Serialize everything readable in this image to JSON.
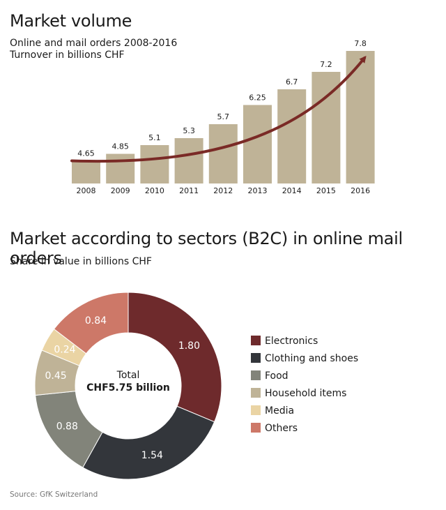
{
  "bar_section": {
    "title": "Market volume",
    "subtitle_line1": "Online and mail orders 2008-2016",
    "subtitle_line2": "Turnover in billions CHF"
  },
  "donut_section": {
    "title": "Market according to sectors (B2C) in online mail orders",
    "subtitle": "Share in value in billions CHF",
    "total_label": "Total",
    "total_value": "CHF5.75 billion"
  },
  "source": "Source: GfK Switzerland",
  "colors": {
    "bar": "#bfb397",
    "trend_arrow": "#7a2a26"
  },
  "chart_data": [
    {
      "type": "bar",
      "title": "Market volume",
      "subtitle": "Online and mail orders 2008-2016 — Turnover in billions CHF",
      "categories": [
        "2008",
        "2009",
        "2010",
        "2011",
        "2012",
        "2013",
        "2014",
        "2015",
        "2016"
      ],
      "values": [
        4.65,
        4.85,
        5.1,
        5.3,
        5.7,
        6.25,
        6.7,
        7.2,
        7.8
      ],
      "value_labels": [
        "4.65",
        "4.85",
        "5.1",
        "5.3",
        "5.7",
        "6.25",
        "6.7",
        "7.2",
        "7.8"
      ],
      "ylim": [
        4.0,
        7.8
      ],
      "annotations": [
        "upward trend arrow"
      ]
    },
    {
      "type": "pie",
      "variant": "donut",
      "title": "Market according to sectors (B2C) in online mail orders",
      "subtitle": "Share in value in billions CHF",
      "labels": [
        "Electronics",
        "Clothing and shoes",
        "Food",
        "Household items",
        "Media",
        "Others"
      ],
      "values": [
        1.8,
        1.54,
        0.88,
        0.45,
        0.24,
        0.84
      ],
      "value_labels": [
        "1.80",
        "1.54",
        "0.88",
        "0.45",
        "0.24",
        "0.84"
      ],
      "colors": [
        "#6e2a2c",
        "#33363b",
        "#82847a",
        "#bfb397",
        "#ead4a4",
        "#cd7868"
      ],
      "total": "CHF5.75 billion",
      "legend_position": "right"
    }
  ]
}
